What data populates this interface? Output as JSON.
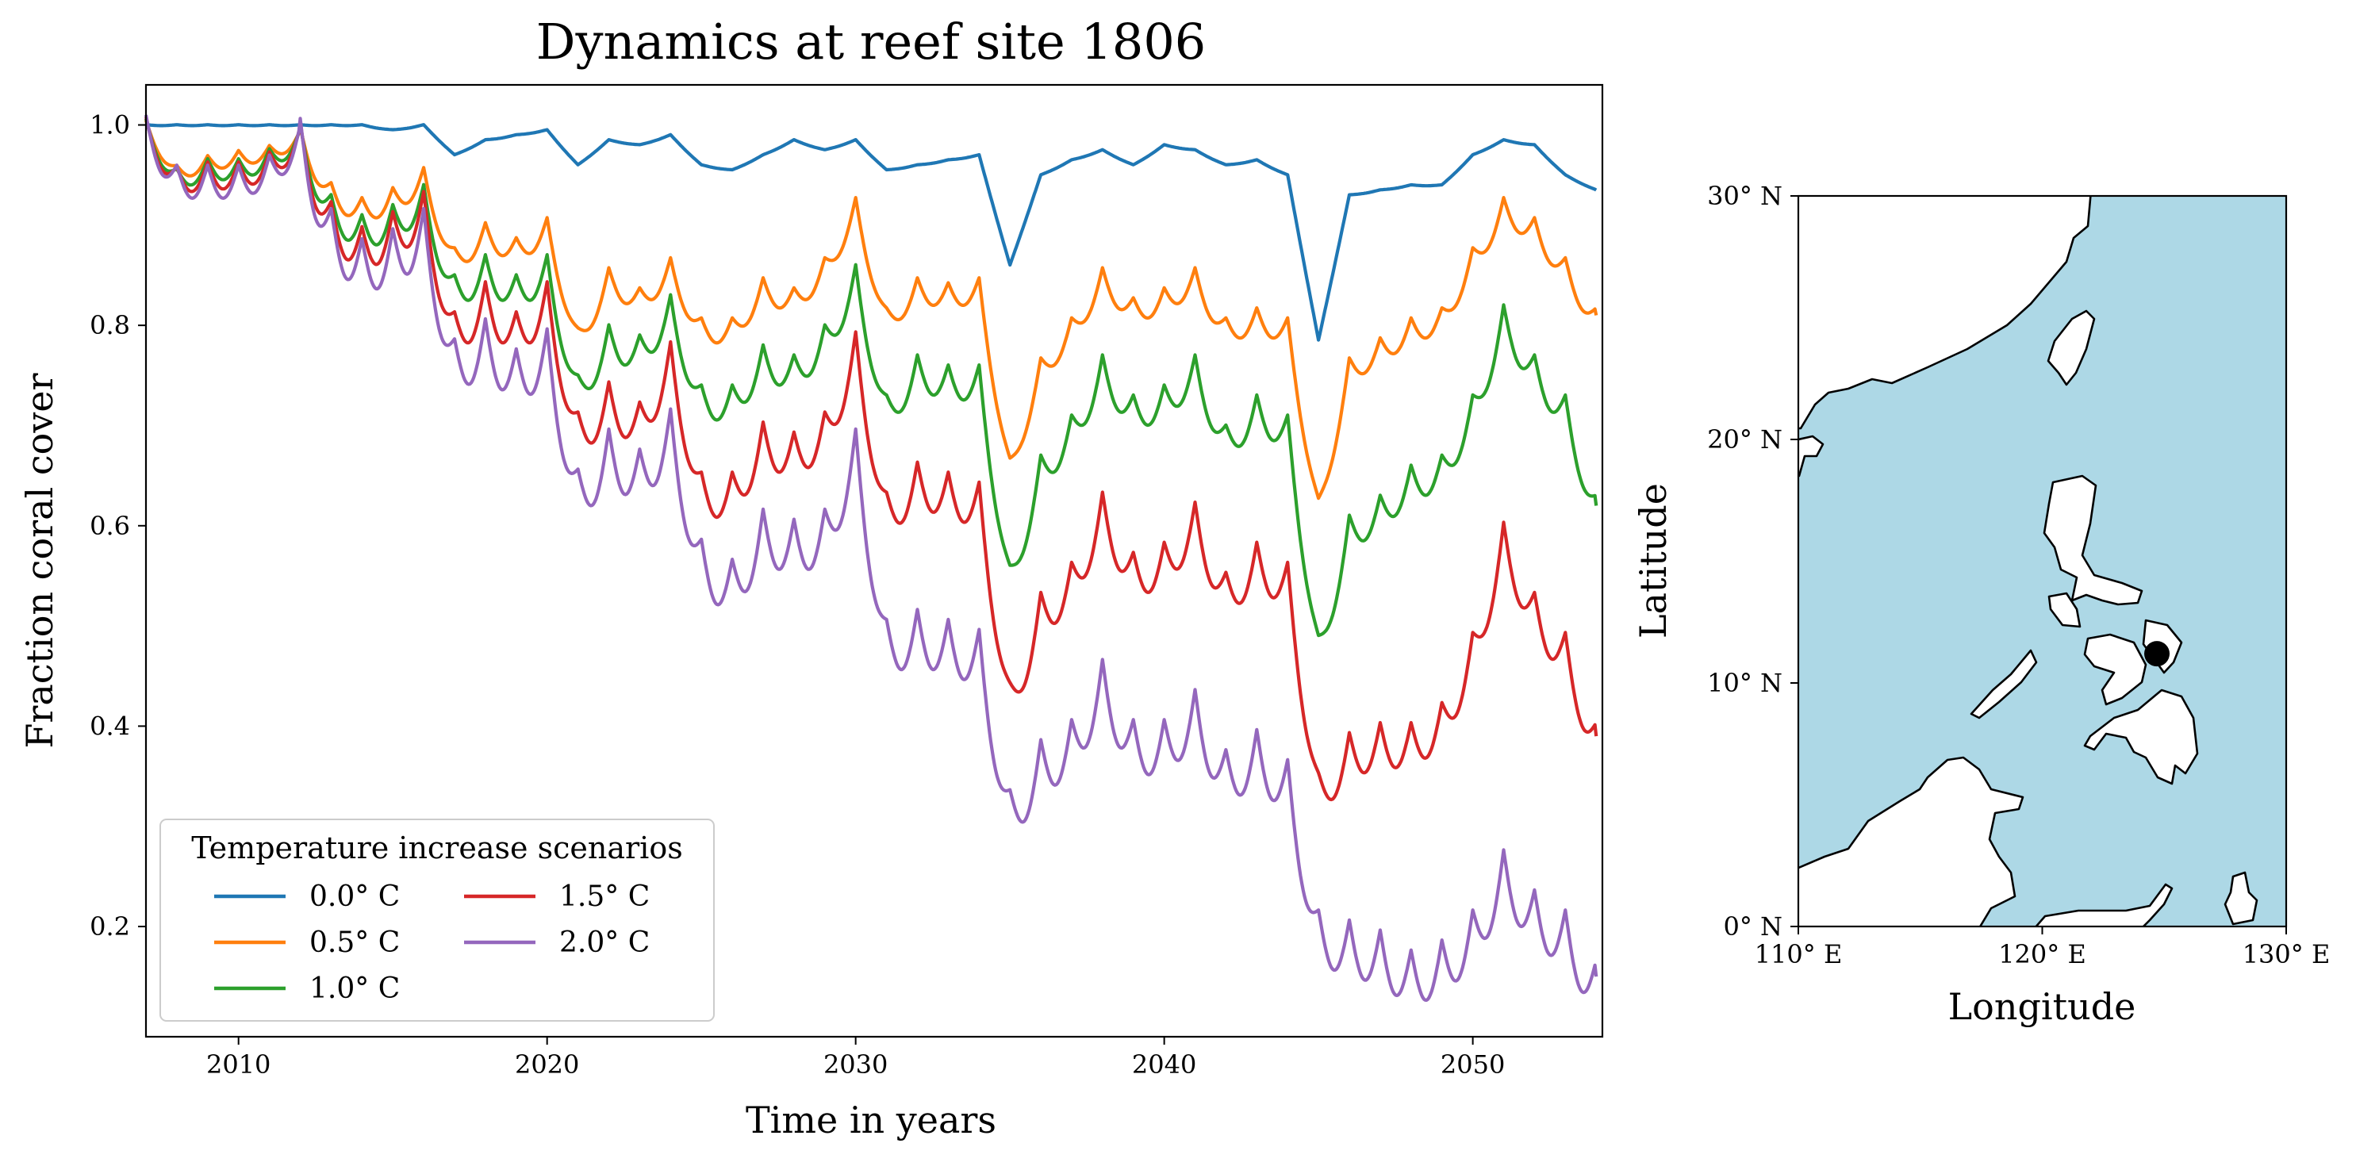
{
  "chart_data": [
    {
      "type": "line",
      "title": "Dynamics at reef site 1806",
      "xlabel": "Time in years",
      "ylabel": "Fraction coral cover",
      "xlim": [
        2007,
        2054.2
      ],
      "ylim": [
        0.09,
        1.04
      ],
      "x_ticks": [
        "2010",
        "2020",
        "2030",
        "2040",
        "2050"
      ],
      "y_ticks": [
        "0.2",
        "0.4",
        "0.6",
        "0.8",
        "1.0"
      ],
      "grid": false,
      "legend": {
        "title": "Temperature increase scenarios",
        "placement": "lower-left",
        "columns": 2
      },
      "x_note": "annual points, 2007-2054; curves oscillate seasonally between these annual values",
      "x": [
        2007,
        2008,
        2009,
        2010,
        2011,
        2012,
        2013,
        2014,
        2015,
        2016,
        2017,
        2018,
        2019,
        2020,
        2021,
        2022,
        2023,
        2024,
        2025,
        2026,
        2027,
        2028,
        2029,
        2030,
        2031,
        2032,
        2033,
        2034,
        2035,
        2036,
        2037,
        2038,
        2039,
        2040,
        2041,
        2042,
        2043,
        2044,
        2045,
        2046,
        2047,
        2048,
        2049,
        2050,
        2051,
        2052,
        2053,
        2054
      ],
      "series": [
        {
          "name": "0.0° C",
          "color": "#1f77b4",
          "values": [
            1.0,
            1.0,
            1.0,
            1.0,
            1.0,
            1.0,
            1.0,
            1.0,
            0.995,
            1.0,
            0.97,
            0.985,
            0.99,
            0.995,
            0.96,
            0.985,
            0.98,
            0.99,
            0.96,
            0.955,
            0.97,
            0.985,
            0.975,
            0.985,
            0.955,
            0.96,
            0.965,
            0.97,
            0.86,
            0.95,
            0.965,
            0.975,
            0.96,
            0.98,
            0.975,
            0.96,
            0.965,
            0.95,
            0.785,
            0.93,
            0.935,
            0.94,
            0.94,
            0.97,
            0.985,
            0.98,
            0.95,
            0.935
          ]
        },
        {
          "name": "0.5° C",
          "color": "#ff7f0e",
          "values": [
            1.0,
            0.955,
            0.965,
            0.97,
            0.975,
            0.99,
            0.935,
            0.92,
            0.93,
            0.95,
            0.87,
            0.895,
            0.88,
            0.9,
            0.79,
            0.85,
            0.83,
            0.86,
            0.8,
            0.8,
            0.84,
            0.83,
            0.86,
            0.92,
            0.81,
            0.84,
            0.835,
            0.84,
            0.66,
            0.76,
            0.8,
            0.85,
            0.82,
            0.83,
            0.85,
            0.8,
            0.81,
            0.8,
            0.62,
            0.76,
            0.78,
            0.8,
            0.81,
            0.87,
            0.92,
            0.9,
            0.86,
            0.81
          ]
        },
        {
          "name": "1.0° C",
          "color": "#2ca02c",
          "values": [
            1.0,
            0.95,
            0.96,
            0.96,
            0.97,
            0.99,
            0.92,
            0.9,
            0.91,
            0.93,
            0.84,
            0.86,
            0.84,
            0.86,
            0.74,
            0.79,
            0.78,
            0.82,
            0.73,
            0.73,
            0.77,
            0.76,
            0.79,
            0.85,
            0.72,
            0.76,
            0.75,
            0.75,
            0.55,
            0.66,
            0.7,
            0.76,
            0.72,
            0.73,
            0.76,
            0.69,
            0.72,
            0.7,
            0.48,
            0.6,
            0.62,
            0.65,
            0.66,
            0.72,
            0.81,
            0.76,
            0.72,
            0.62
          ]
        },
        {
          "name": "1.5° C",
          "color": "#d62728",
          "values": [
            1.0,
            0.95,
            0.955,
            0.955,
            0.965,
            0.99,
            0.91,
            0.885,
            0.9,
            0.92,
            0.8,
            0.83,
            0.8,
            0.83,
            0.7,
            0.73,
            0.71,
            0.77,
            0.64,
            0.64,
            0.69,
            0.68,
            0.7,
            0.78,
            0.62,
            0.65,
            0.64,
            0.63,
            0.43,
            0.52,
            0.55,
            0.62,
            0.56,
            0.57,
            0.61,
            0.54,
            0.57,
            0.55,
            0.34,
            0.38,
            0.39,
            0.39,
            0.41,
            0.48,
            0.59,
            0.52,
            0.48,
            0.39
          ]
        },
        {
          "name": "2.0° C",
          "color": "#9467bd",
          "values": [
            1.0,
            0.95,
            0.95,
            0.95,
            0.96,
            0.99,
            0.9,
            0.87,
            0.88,
            0.9,
            0.77,
            0.79,
            0.76,
            0.78,
            0.64,
            0.68,
            0.66,
            0.7,
            0.57,
            0.55,
            0.6,
            0.59,
            0.6,
            0.68,
            0.49,
            0.5,
            0.49,
            0.48,
            0.32,
            0.37,
            0.39,
            0.45,
            0.39,
            0.39,
            0.42,
            0.36,
            0.38,
            0.35,
            0.2,
            0.19,
            0.18,
            0.16,
            0.17,
            0.2,
            0.26,
            0.22,
            0.2,
            0.15
          ]
        }
      ]
    },
    {
      "type": "map",
      "xlabel": "Longitude",
      "ylabel": "Latitude",
      "xlim": [
        110,
        130
      ],
      "ylim": [
        0,
        30
      ],
      "x_ticks": [
        "110° E",
        "120° E",
        "130° E"
      ],
      "y_ticks": [
        "0° N",
        "10° N",
        "20° N",
        "30° N"
      ],
      "ocean_color": "#add8e6",
      "land_color": "#ffffff",
      "marker": {
        "label": "reef site 1806",
        "lon": 124.7,
        "lat": 11.2,
        "color": "#000000"
      }
    }
  ]
}
